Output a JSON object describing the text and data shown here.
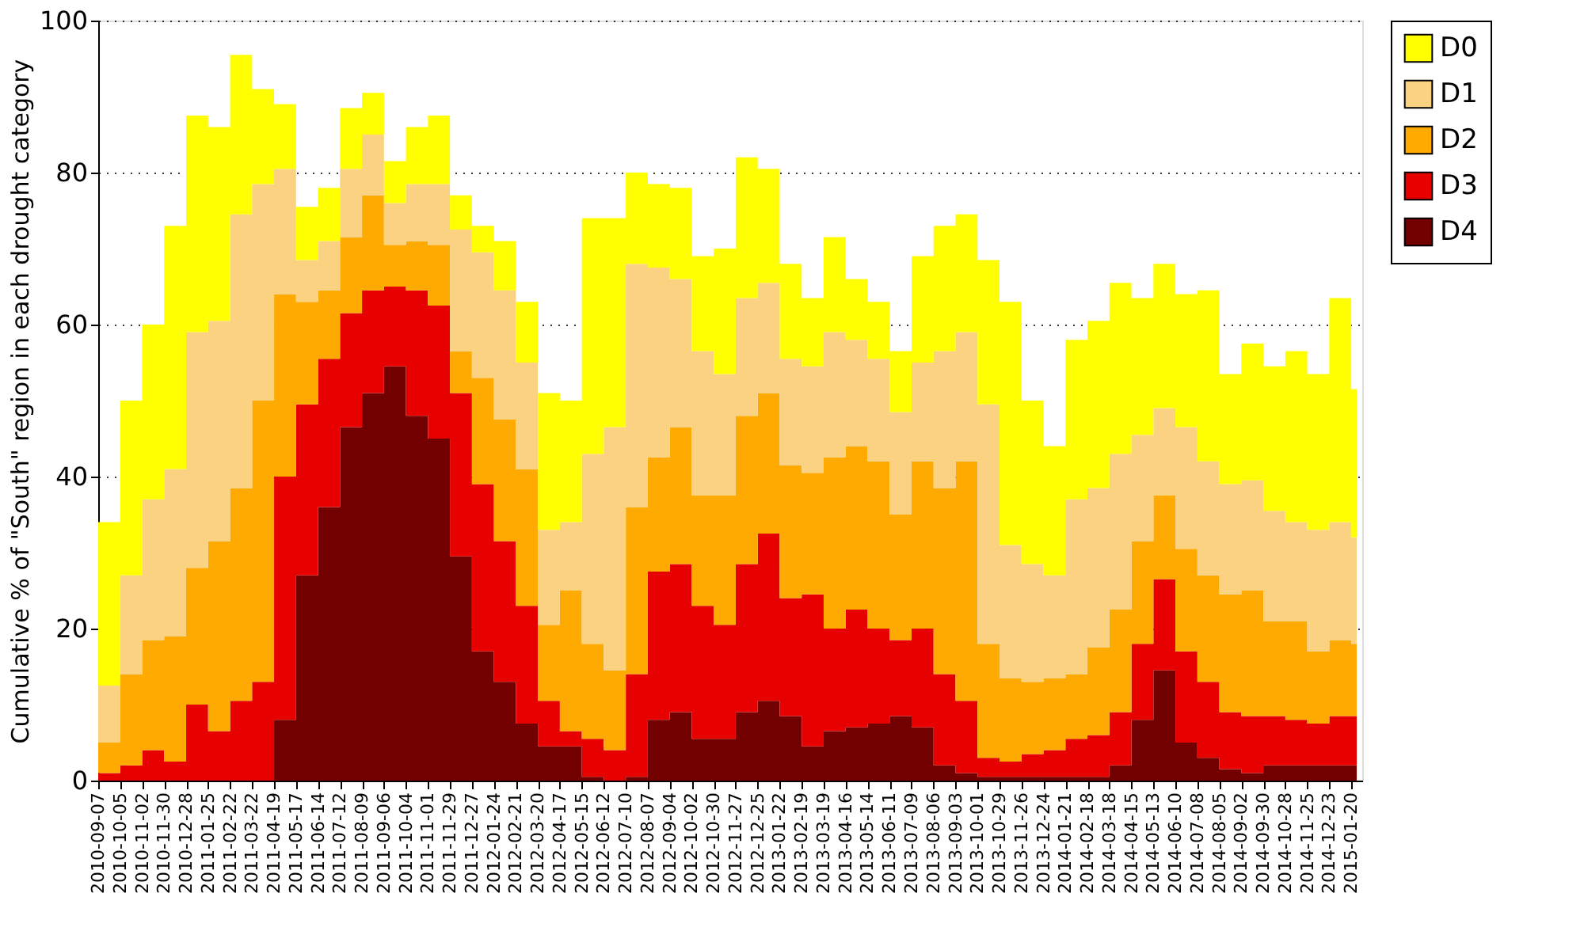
{
  "chart_data": {
    "type": "area",
    "ylabel": "Cumulative % of \"South\" region in each drought category",
    "stacked": true,
    "legend": "right",
    "grid": "y",
    "x": [
      "2010-09-07",
      "2010-10-05",
      "2010-11-02",
      "2010-11-30",
      "2010-12-28",
      "2011-01-25",
      "2011-02-22",
      "2011-03-22",
      "2011-04-19",
      "2011-05-17",
      "2011-06-14",
      "2011-07-12",
      "2011-08-09",
      "2011-09-06",
      "2011-10-04",
      "2011-11-01",
      "2011-11-29",
      "2011-12-27",
      "2012-01-24",
      "2012-02-21",
      "2012-03-20",
      "2012-04-17",
      "2012-05-15",
      "2012-06-12",
      "2012-07-10",
      "2012-08-07",
      "2012-09-04",
      "2012-10-02",
      "2012-10-30",
      "2012-11-27",
      "2012-12-25",
      "2013-01-22",
      "2013-02-19",
      "2013-03-19",
      "2013-04-16",
      "2013-05-14",
      "2013-06-11",
      "2013-07-09",
      "2013-08-06",
      "2013-09-03",
      "2013-10-01",
      "2013-10-29",
      "2013-11-26",
      "2013-12-24",
      "2014-01-21",
      "2014-02-18",
      "2014-03-18",
      "2014-04-15",
      "2014-05-13",
      "2014-06-10",
      "2014-07-08",
      "2014-08-05",
      "2014-09-02",
      "2014-09-30",
      "2014-10-28",
      "2014-11-25",
      "2014-12-23",
      "2015-01-20",
      "2015-01-27"
    ],
    "series": [
      {
        "name": "D4",
        "color": "#730000",
        "values": [
          0,
          0,
          0,
          0,
          0,
          0,
          0,
          0,
          8,
          27,
          36,
          46.5,
          51,
          54.5,
          48,
          45,
          29.5,
          17,
          13,
          7.5,
          4.5,
          4.5,
          0.5,
          0,
          0.5,
          8,
          9,
          5.5,
          5.5,
          9,
          10.5,
          8.5,
          4.5,
          6.5,
          7,
          7.5,
          8.5,
          7,
          2,
          1,
          0.5,
          0.5,
          0.5,
          0.5,
          0.5,
          0.5,
          2,
          8,
          14.5,
          5,
          3,
          1.5,
          1,
          2,
          2,
          2,
          2,
          2,
          2
        ]
      },
      {
        "name": "D3",
        "color": "#e60000",
        "values": [
          1,
          2,
          4,
          2.5,
          10,
          6.5,
          10.5,
          13,
          32,
          22.5,
          19.5,
          15,
          13.5,
          10.5,
          16.5,
          17.5,
          21.5,
          22,
          18.5,
          15.5,
          6,
          2,
          5,
          4,
          13.5,
          19.5,
          19.5,
          17.5,
          15,
          19.5,
          22,
          15.5,
          20,
          13.5,
          15.5,
          12.5,
          10,
          13,
          12,
          9.5,
          2.5,
          2,
          3,
          3.5,
          5,
          5.5,
          7,
          10,
          12,
          12,
          10,
          7.5,
          7.5,
          6.5,
          6,
          5.5,
          6.5,
          6.5,
          6.5
        ]
      },
      {
        "name": "D2",
        "color": "#ffaa00",
        "values": [
          4,
          12,
          14.5,
          16.5,
          18,
          25,
          28,
          37,
          24,
          13.5,
          9,
          10,
          12.5,
          5.5,
          6.5,
          8,
          5.5,
          14,
          16,
          18,
          10,
          18.5,
          12.5,
          10.5,
          22,
          15,
          18,
          14.5,
          17,
          19.5,
          18.5,
          17.5,
          16,
          22.5,
          21.5,
          22,
          16.5,
          22,
          24.5,
          31.5,
          15,
          11,
          9.5,
          9.5,
          8.5,
          11.5,
          13.5,
          13.5,
          11,
          13.5,
          14,
          15.5,
          16.5,
          12.5,
          13,
          9.5,
          10,
          9.5,
          9.5
        ]
      },
      {
        "name": "D1",
        "color": "#fad282",
        "values": [
          7.5,
          13,
          18.5,
          22,
          31,
          29,
          36,
          28.5,
          16.5,
          5.5,
          6.5,
          9,
          8,
          5.5,
          7.5,
          8,
          16,
          16.5,
          17,
          14,
          12.5,
          9,
          25,
          32,
          32,
          25,
          19.5,
          19,
          16,
          15.5,
          14.5,
          14,
          14,
          16.5,
          14,
          13.5,
          13.5,
          13,
          18,
          17,
          31.5,
          17.5,
          15.5,
          13.5,
          23,
          21,
          20.5,
          14,
          11.5,
          16,
          15,
          14.5,
          14.5,
          14.5,
          13,
          16,
          15.5,
          14,
          13.5
        ]
      },
      {
        "name": "D0",
        "color": "#ffff00",
        "values": [
          21.5,
          23,
          23,
          32,
          28.5,
          25.5,
          21,
          12.5,
          8.5,
          7,
          7,
          8,
          5.5,
          5.5,
          7.5,
          9,
          4.5,
          3.5,
          6.5,
          8,
          18,
          16,
          31,
          27.5,
          12,
          11,
          12,
          12.5,
          16.5,
          18.5,
          15,
          12.5,
          9,
          12.5,
          8,
          7.5,
          8,
          14,
          16.5,
          15.5,
          19,
          32,
          21.5,
          17,
          21,
          22,
          22.5,
          18,
          19,
          17.5,
          22.5,
          14.5,
          18,
          19,
          22.5,
          20.5,
          29.5,
          19.5,
          20
        ]
      }
    ],
    "xlim": [
      "2010-09-07",
      "2015-02-03"
    ],
    "xticks": [
      "2010-09-07",
      "2010-10-05",
      "2010-11-02",
      "2010-11-30",
      "2010-12-28",
      "2011-01-25",
      "2011-02-22",
      "2011-03-22",
      "2011-04-19",
      "2011-05-17",
      "2011-06-14",
      "2011-07-12",
      "2011-08-09",
      "2011-09-06",
      "2011-10-04",
      "2011-11-01",
      "2011-11-29",
      "2011-12-27",
      "2012-01-24",
      "2012-02-21",
      "2012-03-20",
      "2012-04-17",
      "2012-05-15",
      "2012-06-12",
      "2012-07-10",
      "2012-08-07",
      "2012-09-04",
      "2012-10-02",
      "2012-10-30",
      "2012-11-27",
      "2012-12-25",
      "2013-01-22",
      "2013-02-19",
      "2013-03-19",
      "2013-04-16",
      "2013-05-14",
      "2013-06-11",
      "2013-07-09",
      "2013-08-06",
      "2013-09-03",
      "2013-10-01",
      "2013-10-29",
      "2013-11-26",
      "2013-12-24",
      "2014-01-21",
      "2014-02-18",
      "2014-03-18",
      "2014-04-15",
      "2014-05-13",
      "2014-06-10",
      "2014-07-08",
      "2014-08-05",
      "2014-09-02",
      "2014-09-30",
      "2014-10-28",
      "2014-11-25",
      "2014-12-23",
      "2015-01-20"
    ],
    "ylim": [
      0,
      100
    ],
    "yticks": [
      0,
      20,
      40,
      60,
      80,
      100
    ]
  }
}
